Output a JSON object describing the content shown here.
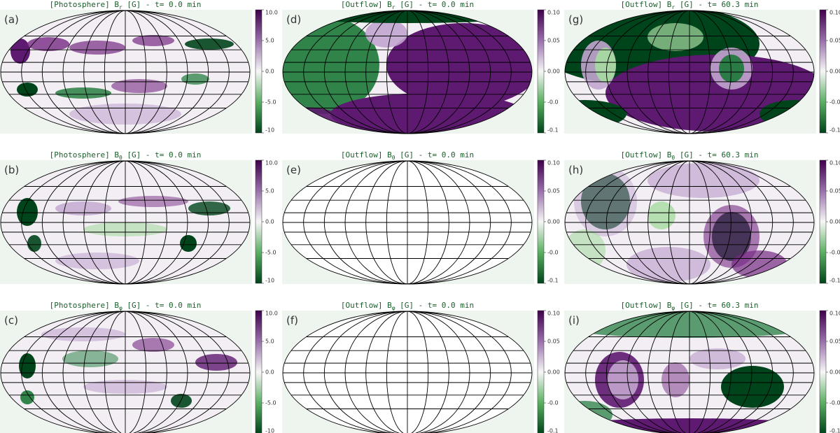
{
  "panels": [
    {
      "label": "(a)",
      "title": {
        "pre": "[Photosphere] B",
        "sub": "r",
        "post": " [G] - t=  0.0 min"
      },
      "colorbar_ticks": [
        "10.0",
        "5.0",
        "0.0",
        "-5.0",
        "-10"
      ]
    },
    {
      "label": "(b)",
      "title": {
        "pre": "[Photosphere] B",
        "sub": "θ",
        "post": " [G] - t=  0.0 min"
      },
      "colorbar_ticks": [
        "10.0",
        "5.0",
        "0.0",
        "-5.0",
        "-10"
      ]
    },
    {
      "label": "(c)",
      "title": {
        "pre": "[Photosphere] B",
        "sub": "φ",
        "post": " [G] - t=  0.0 min"
      },
      "colorbar_ticks": [
        "10.0",
        "5.0",
        "0.0",
        "-5.0",
        "-10"
      ]
    },
    {
      "label": "(d)",
      "title": {
        "pre": "[Outflow] B",
        "sub": "r",
        "post": " [G] - t=  0.0 min"
      },
      "colorbar_ticks": [
        "0.10",
        "0.05",
        "0.00",
        "-0.0",
        "-0.1"
      ]
    },
    {
      "label": "(e)",
      "title": {
        "pre": "[Outflow] B",
        "sub": "θ",
        "post": " [G] - t=  0.0 min"
      },
      "colorbar_ticks": [
        "0.10",
        "0.05",
        "0.00",
        "-0.0",
        "-0.1"
      ]
    },
    {
      "label": "(f)",
      "title": {
        "pre": "[Outflow] B",
        "sub": "φ",
        "post": " [G] - t=  0.0 min"
      },
      "colorbar_ticks": [
        "0.10",
        "0.05",
        "0.00",
        "-0.0",
        "-0.1"
      ]
    },
    {
      "label": "(g)",
      "title": {
        "pre": "[Outflow] B",
        "sub": "r",
        "post": " [G] - t= 60.3 min"
      },
      "colorbar_ticks": [
        "0.10",
        "0.05",
        "0.00",
        "-0.0",
        "-0.1"
      ]
    },
    {
      "label": "(h)",
      "title": {
        "pre": "[Outflow] B",
        "sub": "θ",
        "post": " [G] - t= 60.3 min"
      },
      "colorbar_ticks": [
        "0.10",
        "0.05",
        "0.00",
        "-0.0",
        "-0.1"
      ]
    },
    {
      "label": "(i)",
      "title": {
        "pre": "[Outflow] B",
        "sub": "φ",
        "post": " [G] - t= 60.3 min"
      },
      "colorbar_ticks": [
        "0.10",
        "0.05",
        "0.00",
        "-0.0",
        "-0.1"
      ]
    }
  ]
}
